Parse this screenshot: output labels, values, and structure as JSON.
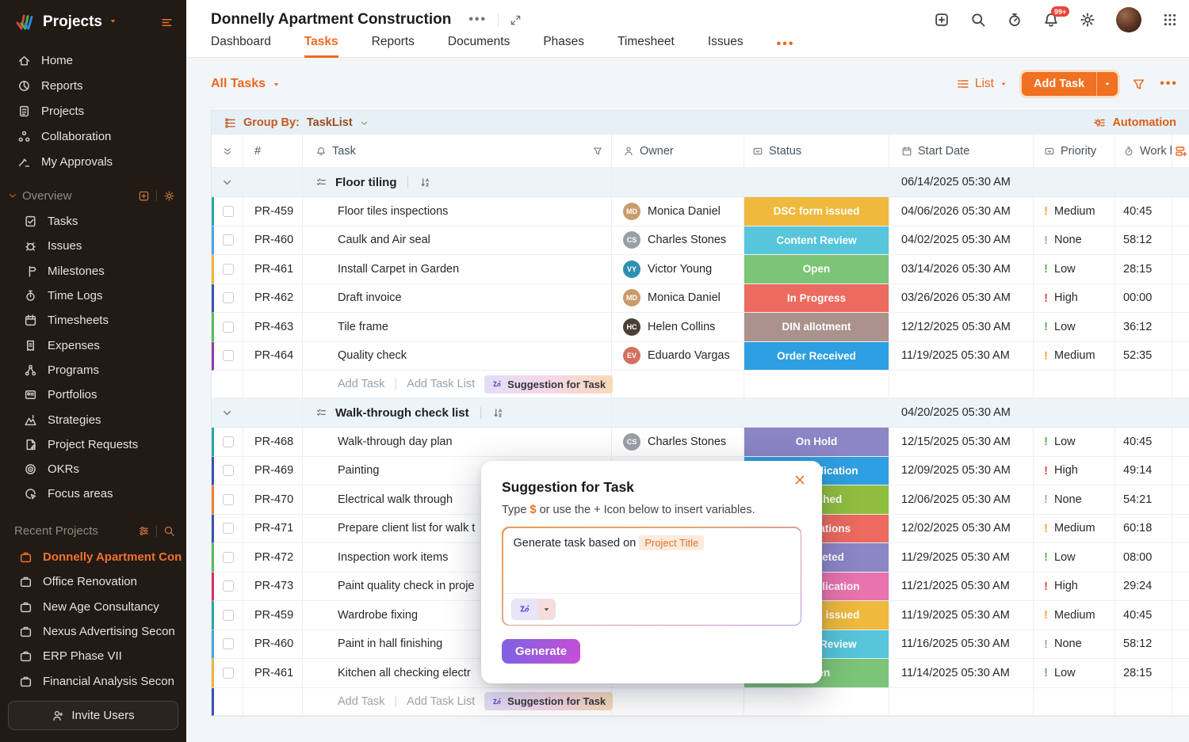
{
  "accent_color": "#EF7121",
  "sidebar": {
    "brand": "Projects",
    "nav": [
      {
        "label": "Home",
        "icon": "home"
      },
      {
        "label": "Reports",
        "icon": "reports"
      },
      {
        "label": "Projects",
        "icon": "projects"
      },
      {
        "label": "Collaboration",
        "icon": "collaboration"
      },
      {
        "label": "My Approvals",
        "icon": "approvals"
      }
    ],
    "overview_label": "Overview",
    "overview_items": [
      {
        "label": "Tasks",
        "icon": "tasks"
      },
      {
        "label": "Issues",
        "icon": "issues"
      },
      {
        "label": "Milestones",
        "icon": "milestones"
      },
      {
        "label": "Time Logs",
        "icon": "timelogs"
      },
      {
        "label": "Timesheets",
        "icon": "timesheets"
      },
      {
        "label": "Expenses",
        "icon": "expenses"
      },
      {
        "label": "Programs",
        "icon": "programs"
      },
      {
        "label": "Portfolios",
        "icon": "portfolios"
      },
      {
        "label": "Strategies",
        "icon": "strategies"
      },
      {
        "label": "Project Requests",
        "icon": "requests"
      },
      {
        "label": "OKRs",
        "icon": "okrs"
      },
      {
        "label": "Focus areas",
        "icon": "focus"
      }
    ],
    "recent_label": "Recent Projects",
    "recent_projects": [
      {
        "name": "Donnelly Apartment Con",
        "active": true
      },
      {
        "name": "Office Renovation",
        "active": false
      },
      {
        "name": "New Age Consultancy",
        "active": false
      },
      {
        "name": "Nexus Advertising Secon",
        "active": false
      },
      {
        "name": "ERP Phase VII",
        "active": false
      },
      {
        "name": "Financial Analysis Secon",
        "active": false
      }
    ],
    "invite_label": "Invite Users"
  },
  "header": {
    "title": "Donnelly Apartment Construction",
    "overflow_dots": "•••",
    "notification_badge": "99+",
    "tabs": [
      {
        "label": "Dashboard",
        "active": false
      },
      {
        "label": "Tasks",
        "active": true
      },
      {
        "label": "Reports",
        "active": false
      },
      {
        "label": "Documents",
        "active": false
      },
      {
        "label": "Phases",
        "active": false
      },
      {
        "label": "Timesheet",
        "active": false
      },
      {
        "label": "Issues",
        "active": false
      }
    ],
    "tabs_more": "•••"
  },
  "toolbar": {
    "filter_label": "All Tasks",
    "view_label": "List",
    "add_task_label": "Add Task",
    "more_label": "•••"
  },
  "groupbar": {
    "group_by_label": "Group By:",
    "group_by_value": "TaskList",
    "automation_label": "Automation"
  },
  "table": {
    "columns": [
      {
        "key": "id",
        "label": "#"
      },
      {
        "key": "task",
        "label": "Task",
        "icon": "alarm",
        "icon_right": "funnel"
      },
      {
        "key": "owner",
        "label": "Owner",
        "icon": "person"
      },
      {
        "key": "status",
        "label": "Status",
        "icon": "boxsel"
      },
      {
        "key": "date",
        "label": "Start Date",
        "icon": "calendar"
      },
      {
        "key": "priority",
        "label": "Priority",
        "icon": "boxsel"
      },
      {
        "key": "hours",
        "label": "Work hours",
        "icon": "timer"
      }
    ],
    "footer_labels": {
      "add_task": "Add Task",
      "add_task_list": "Add Task List",
      "suggestion": "Suggestion for Task"
    }
  },
  "priority_colors": {
    "High": "#DF5348",
    "Medium": "#F2A33A",
    "Low": "#61B15A",
    "None": "#A3AAB0"
  },
  "groups": [
    {
      "name": "Floor tiling",
      "start_date": "06/14/2025 05:30 AM",
      "footer_edge": "",
      "rows": [
        {
          "id": "PR-459",
          "task": "Floor tiles inspections",
          "owner": "Monica Daniel",
          "avatar_color": "#C99A6B",
          "status": "DSC form issued",
          "status_color": "#EFB93D",
          "date": "04/06/2026 05:30 AM",
          "priority": "Medium",
          "hours": "40:45",
          "edge": "#2AA99F"
        },
        {
          "id": "PR-460",
          "task": "Caulk and Air seal",
          "owner": "Charles Stones",
          "avatar_color": "#9A9FA6",
          "status": "Content Review",
          "status_color": "#57C5DB",
          "date": "04/02/2025 05:30 AM",
          "priority": "None",
          "hours": "58:12",
          "edge": "#4BA3E3"
        },
        {
          "id": "PR-461",
          "task": "Install Carpet in Garden",
          "owner": "Victor Young",
          "avatar_color": "#2E8FB0",
          "status": "Open",
          "status_color": "#7CC578",
          "date": "03/14/2026 05:30 AM",
          "priority": "Low",
          "hours": "28:15",
          "edge": "#F2B33D"
        },
        {
          "id": "PR-462",
          "task": "Draft invoice",
          "owner": "Monica Daniel",
          "avatar_color": "#C99A6B",
          "status": "In Progress",
          "status_color": "#EC6A5E",
          "date": "03/26/2026 05:30 AM",
          "priority": "High",
          "hours": "00:00",
          "edge": "#3E4FB1"
        },
        {
          "id": "PR-463",
          "task": "Tile frame",
          "owner": "Helen Collins",
          "avatar_color": "#4A4038",
          "status": "DIN allotment",
          "status_color": "#AB928D",
          "date": "12/12/2025 05:30 AM",
          "priority": "Low",
          "hours": "36:12",
          "edge": "#5CB85C"
        },
        {
          "id": "PR-464",
          "task": "Quality check",
          "owner": "Eduardo Vargas",
          "avatar_color": "#D4705F",
          "status": "Order Received",
          "status_color": "#2E9FE0",
          "date": "11/19/2025 05:30 AM",
          "priority": "Medium",
          "hours": "52:35",
          "edge": "#8E3FA8"
        }
      ]
    },
    {
      "name": "Walk-through check list",
      "start_date": "04/20/2025 05:30 AM",
      "footer_edge": "#3E4FB1",
      "rows": [
        {
          "id": "PR-468",
          "task": "Walk-through day plan",
          "owner": "Charles Stones",
          "avatar_color": "#9A9FA6",
          "status": "On Hold",
          "status_color": "#8C85C6",
          "date": "12/15/2025 05:30 AM",
          "priority": "Low",
          "hours": "40:45",
          "edge": "#2AA99F"
        },
        {
          "id": "PR-469",
          "task": "Painting",
          "owner": "",
          "avatar_color": "",
          "status": "KYC Application",
          "status_color": "#2E9FE0",
          "date": "12/09/2025 05:30 AM",
          "priority": "High",
          "hours": "49:14",
          "edge": "#3E4FB1"
        },
        {
          "id": "PR-470",
          "task": "Electrical walk through",
          "owner": "",
          "avatar_color": "",
          "status": "Published",
          "status_color": "#8FBE3F",
          "date": "12/06/2025 05:30 AM",
          "priority": "None",
          "hours": "54:21",
          "edge": "#EE8031"
        },
        {
          "id": "PR-471",
          "task": "Prepare client list for walk t",
          "owner": "",
          "avatar_color": "",
          "status": "Registrations",
          "status_color": "#EC6A5E",
          "date": "12/02/2025 05:30 AM",
          "priority": "Medium",
          "hours": "60:18",
          "edge": "#3E4FB1"
        },
        {
          "id": "PR-472",
          "task": "Inspection work items",
          "owner": "",
          "avatar_color": "",
          "status": "Completed",
          "status_color": "#8C85C6",
          "date": "11/29/2025 05:30 AM",
          "priority": "Low",
          "hours": "08:00",
          "edge": "#5CB85C"
        },
        {
          "id": "PR-473",
          "task": "Paint quality check in proje",
          "owner": "",
          "avatar_color": "",
          "status": "Loan Application",
          "status_color": "#E873AE",
          "date": "11/21/2025 05:30 AM",
          "priority": "High",
          "hours": "29:24",
          "edge": "#D6336C"
        },
        {
          "id": "PR-459",
          "task": "Wardrobe fixing",
          "owner": "",
          "avatar_color": "",
          "status": "DSC form issued",
          "status_color": "#EFB93D",
          "date": "11/19/2025 05:30 AM",
          "priority": "Medium",
          "hours": "40:45",
          "edge": "#2AA99F"
        },
        {
          "id": "PR-460",
          "task": "Paint in hall finishing",
          "owner": "",
          "avatar_color": "",
          "status": "Content Review",
          "status_color": "#57C5DB",
          "date": "11/16/2025 05:30 AM",
          "priority": "None",
          "hours": "58:12",
          "edge": "#4BA3E3"
        },
        {
          "id": "PR-461",
          "task": "Kitchen all checking electr",
          "owner": "",
          "avatar_color": "",
          "status": "Open",
          "status_color": "#7CC578",
          "date": "11/14/2025 05:30 AM",
          "priority": "Low",
          "hours": "28:15",
          "edge": "#F2B33D"
        }
      ]
    }
  ],
  "dialog": {
    "title": "Suggestion for Task",
    "subtitle_prefix": "Type",
    "dollar": "$",
    "subtitle_suffix": "or use the + Icon below to insert variables.",
    "input_text": "Generate task based on",
    "variable_chip": "Project Title",
    "generate_label": "Generate"
  }
}
